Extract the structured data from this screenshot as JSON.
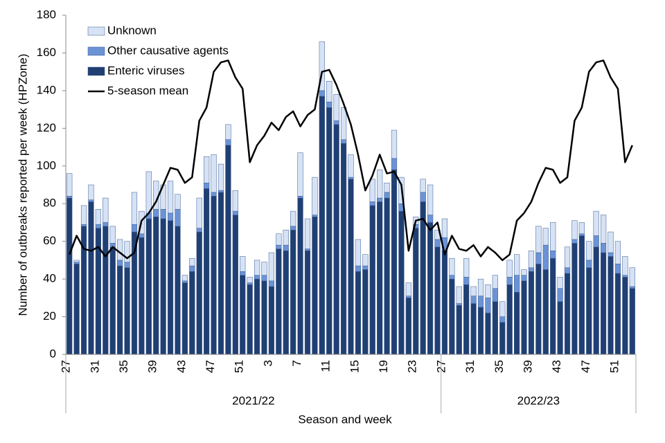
{
  "chart_data": {
    "type": "bar",
    "stacked": true,
    "y_label": "Number of outbreaks reported per week (HPZone)",
    "x_label": "Season and week",
    "categories": [
      "27",
      null,
      null,
      null,
      "31",
      null,
      null,
      null,
      "35",
      null,
      null,
      null,
      "39",
      null,
      null,
      null,
      "43",
      null,
      null,
      null,
      "47",
      null,
      null,
      null,
      "51",
      null,
      null,
      null,
      "3",
      null,
      null,
      null,
      "7",
      null,
      null,
      null,
      "11",
      null,
      null,
      null,
      "15",
      null,
      null,
      null,
      "19",
      null,
      null,
      null,
      "23",
      null,
      null,
      null,
      "27",
      null,
      null,
      null,
      "31",
      null,
      null,
      null,
      "35",
      null,
      null,
      null,
      "39",
      null,
      null,
      null,
      "43",
      null,
      null,
      null,
      "47",
      null,
      null,
      null,
      "51",
      null,
      null
    ],
    "groups": [
      {
        "label": "2021/22",
        "size": 52
      },
      {
        "label": "2022/23",
        "size": 27
      }
    ],
    "series": [
      {
        "name": "Enteric viruses",
        "color": "#203f73",
        "values": [
          83,
          48,
          68,
          81,
          67,
          68,
          57,
          47,
          46,
          65,
          62,
          72,
          73,
          72,
          71,
          68,
          38,
          44,
          65,
          88,
          84,
          86,
          111,
          74,
          42,
          37,
          40,
          39,
          36,
          56,
          55,
          66,
          83,
          55,
          73,
          137,
          131,
          122,
          112,
          93,
          44,
          45,
          79,
          81,
          83,
          98,
          76,
          30,
          67,
          81,
          70,
          57,
          55,
          40,
          26,
          37,
          27,
          25,
          22,
          28,
          17,
          37,
          33,
          39,
          44,
          48,
          45,
          51,
          28,
          43,
          59,
          63,
          46,
          57,
          54,
          52,
          43,
          41,
          35
        ]
      },
      {
        "name": "Other causative agents",
        "color": "#6b93d6",
        "values": [
          1,
          1,
          1,
          1,
          2,
          2,
          2,
          3,
          3,
          4,
          2,
          3,
          4,
          5,
          4,
          9,
          1,
          3,
          2,
          3,
          2,
          1,
          3,
          2,
          2,
          1,
          2,
          3,
          3,
          2,
          3,
          2,
          1,
          1,
          1,
          3,
          3,
          2,
          2,
          1,
          3,
          2,
          2,
          2,
          3,
          6,
          4,
          1,
          2,
          5,
          4,
          4,
          7,
          2,
          1,
          4,
          4,
          6,
          8,
          7,
          3,
          4,
          9,
          3,
          2,
          6,
          13,
          4,
          7,
          3,
          2,
          1,
          4,
          6,
          5,
          2,
          5,
          1,
          1
        ]
      },
      {
        "name": "Unknown",
        "color": "#d6e2f5",
        "values": [
          12,
          1,
          10,
          8,
          8,
          13,
          9,
          11,
          11,
          17,
          12,
          22,
          15,
          13,
          17,
          8,
          3,
          4,
          16,
          14,
          20,
          14,
          8,
          11,
          8,
          3,
          8,
          7,
          15,
          6,
          8,
          8,
          23,
          16,
          20,
          26,
          11,
          14,
          17,
          12,
          14,
          6,
          12,
          15,
          5,
          15,
          14,
          7,
          4,
          7,
          16,
          5,
          10,
          9,
          9,
          10,
          5,
          9,
          7,
          7,
          8,
          9,
          11,
          3,
          9,
          14,
          9,
          15,
          6,
          11,
          10,
          6,
          10,
          13,
          15,
          11,
          12,
          10,
          10
        ]
      },
      {
        "name": "5-season mean",
        "type": "line",
        "color": "#000000",
        "values": [
          53,
          63,
          56,
          55,
          57,
          52,
          57,
          54,
          51,
          54,
          71,
          75,
          81,
          90,
          99,
          98,
          91,
          94,
          124,
          131,
          150,
          155,
          156,
          147,
          141,
          102,
          111,
          116,
          123,
          119,
          126,
          129,
          121,
          127,
          130,
          150,
          151,
          143,
          133,
          122,
          106,
          87,
          95,
          106,
          96,
          97,
          90,
          55,
          71,
          72,
          66,
          70,
          53,
          63,
          56,
          55,
          58,
          52,
          57,
          54,
          50,
          53,
          71,
          75,
          81,
          91,
          99,
          98,
          91,
          94,
          124,
          131,
          150,
          155,
          156,
          147,
          141,
          102,
          111
        ]
      }
    ],
    "ylim": [
      0,
      180
    ],
    "yticks": [
      0,
      20,
      40,
      60,
      80,
      100,
      120,
      140,
      160,
      180
    ],
    "grid": false,
    "legend": "top-left"
  }
}
